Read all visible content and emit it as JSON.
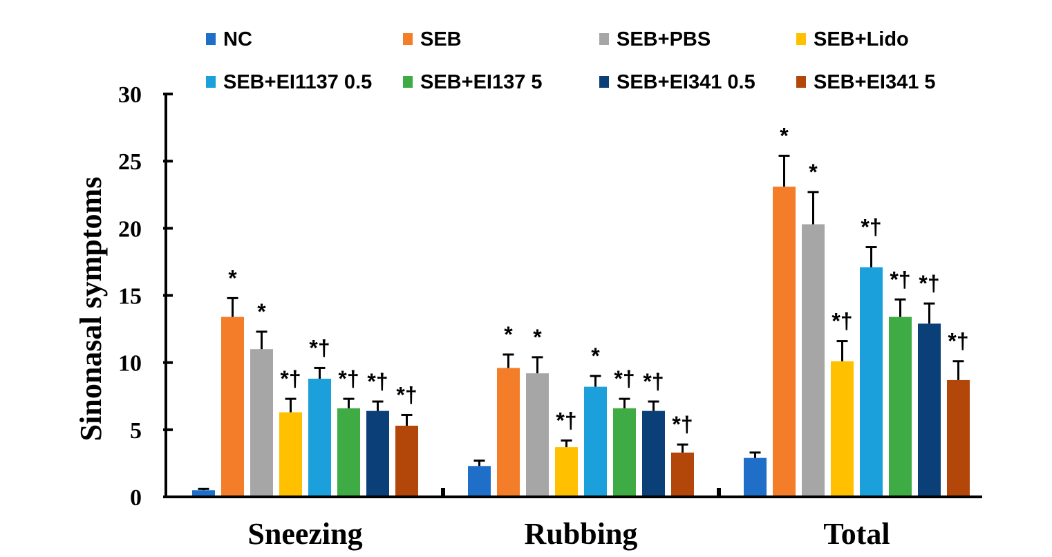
{
  "chart_data": {
    "type": "bar",
    "categories": [
      "Sneezing",
      "Rubbing",
      "Total"
    ],
    "xlabel": "",
    "ylabel": "Sinonasal symptoms",
    "ylim": [
      0,
      30
    ],
    "y_ticks": [
      0,
      5,
      10,
      15,
      20,
      25,
      30
    ],
    "grid": false,
    "legend": "top",
    "error_bars": "upper",
    "series": [
      {
        "name": "NC",
        "color": "#1F6FC9",
        "values": [
          0.5,
          2.3,
          2.9
        ],
        "errors": [
          0.1,
          0.4,
          0.4
        ],
        "labels": [
          null,
          null,
          null
        ]
      },
      {
        "name": "SEB",
        "color": "#F47D2A",
        "values": [
          13.4,
          9.6,
          23.1
        ],
        "errors": [
          1.4,
          1.0,
          2.3
        ],
        "labels": [
          "*",
          "*",
          "*"
        ]
      },
      {
        "name": "SEB+PBS",
        "color": "#A6A6A6",
        "values": [
          11.0,
          9.2,
          20.3
        ],
        "errors": [
          1.3,
          1.2,
          2.4
        ],
        "labels": [
          "*",
          "*",
          "*"
        ]
      },
      {
        "name": "SEB+Lido",
        "color": "#FFC000",
        "values": [
          6.3,
          3.7,
          10.1
        ],
        "errors": [
          1.0,
          0.5,
          1.5
        ],
        "labels": [
          "*†",
          "*†",
          "*†"
        ]
      },
      {
        "name": "SEB+EI1137 0.5",
        "color": "#1BA0DB",
        "values": [
          8.8,
          8.2,
          17.1
        ],
        "errors": [
          0.8,
          0.8,
          1.5
        ],
        "labels": [
          "*†",
          "*",
          "*†"
        ]
      },
      {
        "name": "SEB+EI137 5",
        "color": "#3EAB45",
        "values": [
          6.6,
          6.6,
          13.4
        ],
        "errors": [
          0.7,
          0.7,
          1.3
        ],
        "labels": [
          "*†",
          "*†",
          "*†"
        ]
      },
      {
        "name": "SEB+EI341 0.5",
        "color": "#0A3F78",
        "values": [
          6.4,
          6.4,
          12.9
        ],
        "errors": [
          0.7,
          0.7,
          1.5
        ],
        "labels": [
          "*†",
          "*†",
          "*†"
        ]
      },
      {
        "name": "SEB+EI341 5",
        "color": "#B3470A",
        "values": [
          5.3,
          3.3,
          8.7
        ],
        "errors": [
          0.8,
          0.6,
          1.4
        ],
        "labels": [
          "*†",
          "*†",
          "*†"
        ]
      }
    ]
  }
}
